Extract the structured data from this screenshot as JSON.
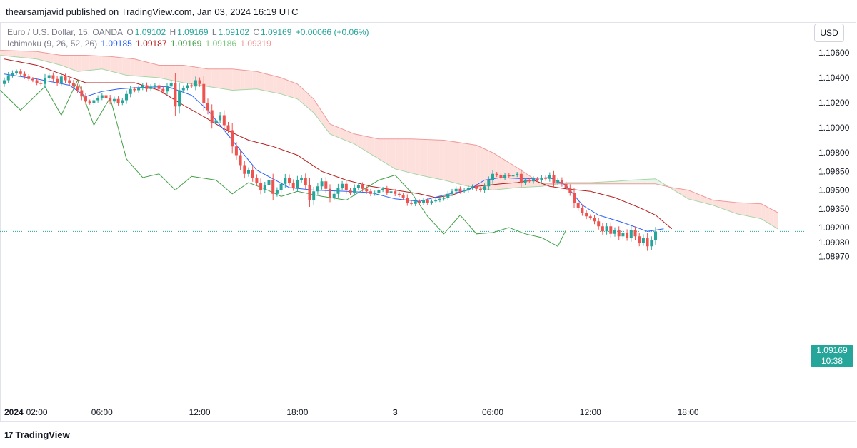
{
  "header": {
    "publisher_text": "thearsamjavid published on TradingView.com, Jan 03, 2024 16:19 UTC"
  },
  "legend": {
    "symbol": "Euro / U.S. Dollar, 15, OANDA",
    "o_label": "O",
    "o_value": "1.09102",
    "h_label": "H",
    "h_value": "1.09169",
    "l_label": "L",
    "l_value": "1.09102",
    "c_label": "C",
    "c_value": "1.09169",
    "change": "+0.00066 (+0.06%)",
    "indicator": "Ichimoku (9, 26, 52, 26)",
    "ind_values": [
      "1.09185",
      "1.09187",
      "1.09169",
      "1.09186",
      "1.09319"
    ]
  },
  "currency_button": "USD",
  "price_tag": {
    "price": "1.09169",
    "countdown": "10:38"
  },
  "footer": {
    "logo_glyph": "17",
    "brand": "TradingView"
  },
  "colors": {
    "up": "#26a69a",
    "down": "#ef5350",
    "conversion": "#2962ff",
    "base": "#b71c1c",
    "lagging": "#43a047",
    "span_a": "#a5d6a7",
    "span_b": "#ef9a9a",
    "cloud_bear": "#fde0dc",
    "cloud_bull": "#e8f5e9"
  },
  "chart_data": {
    "type": "candlestick",
    "symbol": "Euro / U.S. Dollar, 15, OANDA",
    "y_ticks": [
      1.106,
      1.104,
      1.102,
      1.1,
      1.098,
      1.0965,
      1.095,
      1.0935,
      1.092,
      1.0908,
      1.0897
    ],
    "y_tick_labels": [
      "1.10600",
      "1.10400",
      "1.10200",
      "1.10000",
      "1.09800",
      "1.09650",
      "1.09500",
      "1.09350",
      "1.09200",
      "1.09080",
      "1.08970"
    ],
    "x_ticks": [
      {
        "label": "2024",
        "t": 0
      },
      {
        "label": "02:00",
        "t": 8
      },
      {
        "label": "06:00",
        "t": 24
      },
      {
        "label": "12:00",
        "t": 48
      },
      {
        "label": "18:00",
        "t": 72
      },
      {
        "label": "3",
        "t": 96
      },
      {
        "label": "06:00",
        "t": 120
      },
      {
        "label": "12:00",
        "t": 144
      },
      {
        "label": "18:00",
        "t": 168
      }
    ],
    "last_price": 1.09169,
    "candles_close": [
      1.1038,
      1.1042,
      1.1044,
      1.1045,
      1.1043,
      1.1041,
      1.1039,
      1.1038,
      1.1036,
      1.1035,
      1.104,
      1.1042,
      1.1039,
      1.1036,
      1.1041,
      1.1038,
      1.1036,
      1.1033,
      1.103,
      1.1025,
      1.1021,
      1.102,
      1.1022,
      1.1024,
      1.1026,
      1.1024,
      1.1021,
      1.1023,
      1.102,
      1.1022,
      1.1027,
      1.1031,
      1.103,
      1.1032,
      1.1034,
      1.1031,
      1.1033,
      1.1034,
      1.1031,
      1.1029,
      1.1033,
      1.1036,
      1.1017,
      1.103,
      1.1032,
      1.1034,
      1.1033,
      1.1038,
      1.1035,
      1.102,
      1.1014,
      1.1004,
      1.1006,
      1.101,
      1.1002,
      1.0998,
      1.0985,
      1.0978,
      1.097,
      1.0963,
      1.0966,
      1.096,
      1.0956,
      1.095,
      1.0954,
      1.0958,
      1.0947,
      1.095,
      1.0955,
      1.096,
      1.0956,
      1.0952,
      1.0958,
      1.096,
      1.0954,
      1.0942,
      1.0949,
      1.0953,
      1.0957,
      1.0951,
      1.0944,
      1.0947,
      1.0952,
      1.0955,
      1.095,
      1.0948,
      1.0952,
      1.0954,
      1.0951,
      1.0949,
      1.0947,
      1.0948,
      1.095,
      1.0951,
      1.0948,
      1.0949,
      1.0947,
      1.0946,
      1.0944,
      1.094,
      1.0939,
      1.0941,
      1.094,
      1.0942,
      1.094,
      1.0941,
      1.0942,
      1.0943,
      1.0944,
      1.0947,
      1.0949,
      1.0951,
      1.0949,
      1.095,
      1.0952,
      1.0953,
      1.0951,
      1.095,
      1.0953,
      1.0958,
      1.0963,
      1.0962,
      1.096,
      1.0962,
      1.0961,
      1.0962,
      1.0963,
      1.0956,
      1.0958,
      1.0957,
      1.0959,
      1.0958,
      1.096,
      1.0959,
      1.0962,
      1.0956,
      1.0958,
      1.0955,
      1.0952,
      1.0948,
      1.094,
      1.0936,
      1.0932,
      1.0929,
      1.0928,
      1.0925,
      1.0921,
      1.0917,
      1.0921,
      1.0915,
      1.0918,
      1.0913,
      1.0916,
      1.0912,
      1.0918,
      1.0913,
      1.0908,
      1.0912,
      1.0905,
      1.091,
      1.09169
    ],
    "series": [
      {
        "name": "conversion_line",
        "value": 1.09185
      },
      {
        "name": "base_line",
        "value": 1.09187
      },
      {
        "name": "lagging_span",
        "value": 1.09169
      },
      {
        "name": "leading_span_a",
        "value": 1.09186
      },
      {
        "name": "leading_span_b",
        "value": 1.09319
      }
    ],
    "conversion_line": [
      [
        0,
        1.1043
      ],
      [
        8,
        1.1039
      ],
      [
        16,
        1.1034
      ],
      [
        20,
        1.1025
      ],
      [
        24,
        1.1029
      ],
      [
        28,
        1.1031
      ],
      [
        32,
        1.1032
      ],
      [
        40,
        1.1033
      ],
      [
        46,
        1.1026
      ],
      [
        50,
        1.1014
      ],
      [
        56,
        1.099
      ],
      [
        62,
        1.0966
      ],
      [
        70,
        1.0952
      ],
      [
        76,
        1.095
      ],
      [
        84,
        1.0949
      ],
      [
        90,
        1.0948
      ],
      [
        96,
        1.0943
      ],
      [
        102,
        1.0941
      ],
      [
        108,
        1.0946
      ],
      [
        114,
        1.095
      ],
      [
        118,
        1.0958
      ],
      [
        122,
        1.096
      ],
      [
        128,
        1.0959
      ],
      [
        134,
        1.096
      ],
      [
        138,
        1.0954
      ],
      [
        142,
        1.0938
      ],
      [
        146,
        1.093
      ],
      [
        152,
        1.0924
      ],
      [
        158,
        1.0917
      ],
      [
        162,
        1.0919
      ]
    ],
    "base_line": [
      [
        0,
        1.1055
      ],
      [
        8,
        1.105
      ],
      [
        14,
        1.1043
      ],
      [
        20,
        1.1036
      ],
      [
        26,
        1.1036
      ],
      [
        32,
        1.1036
      ],
      [
        38,
        1.103
      ],
      [
        44,
        1.1018
      ],
      [
        50,
        1.1007
      ],
      [
        54,
        1.0999
      ],
      [
        60,
        1.099
      ],
      [
        66,
        1.0985
      ],
      [
        72,
        1.0978
      ],
      [
        78,
        1.0965
      ],
      [
        84,
        1.0958
      ],
      [
        90,
        1.0953
      ],
      [
        96,
        1.095
      ],
      [
        102,
        1.0947
      ],
      [
        106,
        1.0944
      ],
      [
        110,
        1.0946
      ],
      [
        116,
        1.0953
      ],
      [
        122,
        1.0955
      ],
      [
        126,
        1.0956
      ],
      [
        130,
        1.0958
      ],
      [
        134,
        1.0953
      ],
      [
        138,
        1.0951
      ],
      [
        144,
        1.0949
      ],
      [
        150,
        1.0944
      ],
      [
        156,
        1.0936
      ],
      [
        160,
        1.093
      ],
      [
        164,
        1.0919
      ]
    ],
    "lagging_span": [
      [
        -1,
        1.103
      ],
      [
        4,
        1.1014
      ],
      [
        10,
        1.1033
      ],
      [
        14,
        1.101
      ],
      [
        18,
        1.1038
      ],
      [
        22,
        1.1002
      ],
      [
        26,
        1.1024
      ],
      [
        30,
        1.0975
      ],
      [
        34,
        1.096
      ],
      [
        38,
        1.0963
      ],
      [
        42,
        1.095
      ],
      [
        46,
        1.0961
      ],
      [
        52,
        1.0958
      ],
      [
        56,
        1.0947
      ],
      [
        60,
        1.0956
      ],
      [
        64,
        1.0951
      ],
      [
        68,
        1.0945
      ],
      [
        72,
        1.0949
      ],
      [
        78,
        1.0945
      ],
      [
        84,
        1.0942
      ],
      [
        88,
        1.095
      ],
      [
        92,
        1.0958
      ],
      [
        96,
        1.0962
      ],
      [
        100,
        1.0948
      ],
      [
        104,
        1.0929
      ],
      [
        108,
        1.0915
      ],
      [
        112,
        1.093
      ],
      [
        116,
        1.0915
      ],
      [
        120,
        1.0916
      ],
      [
        124,
        1.092
      ],
      [
        128,
        1.0915
      ],
      [
        132,
        1.0912
      ],
      [
        136,
        1.0905
      ],
      [
        138,
        1.0918
      ]
    ],
    "span_a": [
      [
        -1,
        1.1058
      ],
      [
        8,
        1.1055
      ],
      [
        14,
        1.105
      ],
      [
        18,
        1.1045
      ],
      [
        24,
        1.1047
      ],
      [
        30,
        1.1042
      ],
      [
        38,
        1.104
      ],
      [
        44,
        1.1036
      ],
      [
        50,
        1.1033
      ],
      [
        56,
        1.103
      ],
      [
        62,
        1.1031
      ],
      [
        68,
        1.1027
      ],
      [
        72,
        1.1023
      ],
      [
        76,
        1.1012
      ],
      [
        80,
        1.0995
      ],
      [
        86,
        1.0987
      ],
      [
        92,
        1.0975
      ],
      [
        96,
        1.0967
      ],
      [
        102,
        1.0962
      ],
      [
        108,
        1.0958
      ],
      [
        114,
        1.0953
      ],
      [
        120,
        1.095
      ],
      [
        126,
        1.0952
      ],
      [
        132,
        1.0953
      ],
      [
        138,
        1.0956
      ],
      [
        144,
        1.0956
      ],
      [
        150,
        1.0957
      ],
      [
        154,
        1.0958
      ],
      [
        160,
        1.0959
      ],
      [
        164,
        1.0951
      ],
      [
        168,
        1.0943
      ],
      [
        174,
        1.0938
      ],
      [
        180,
        1.0931
      ],
      [
        186,
        1.0927
      ],
      [
        190,
        1.0919
      ]
    ],
    "span_b": [
      [
        -1,
        1.1062
      ],
      [
        8,
        1.1061
      ],
      [
        14,
        1.1058
      ],
      [
        20,
        1.1058
      ],
      [
        26,
        1.1057
      ],
      [
        32,
        1.1055
      ],
      [
        38,
        1.105
      ],
      [
        44,
        1.105
      ],
      [
        50,
        1.1047
      ],
      [
        56,
        1.1047
      ],
      [
        62,
        1.1045
      ],
      [
        68,
        1.104
      ],
      [
        72,
        1.1035
      ],
      [
        76,
        1.1023
      ],
      [
        80,
        1.1003
      ],
      [
        86,
        1.0995
      ],
      [
        92,
        1.0991
      ],
      [
        100,
        1.0991
      ],
      [
        108,
        1.099
      ],
      [
        116,
        1.0986
      ],
      [
        120,
        1.098
      ],
      [
        126,
        1.0968
      ],
      [
        132,
        1.0955
      ],
      [
        138,
        1.0955
      ],
      [
        144,
        1.0955
      ],
      [
        150,
        1.0955
      ],
      [
        156,
        1.0955
      ],
      [
        160,
        1.0955
      ],
      [
        164,
        1.0952
      ],
      [
        168,
        1.095
      ],
      [
        174,
        1.0942
      ],
      [
        180,
        1.094
      ],
      [
        186,
        1.0939
      ],
      [
        190,
        1.0932
      ]
    ]
  }
}
